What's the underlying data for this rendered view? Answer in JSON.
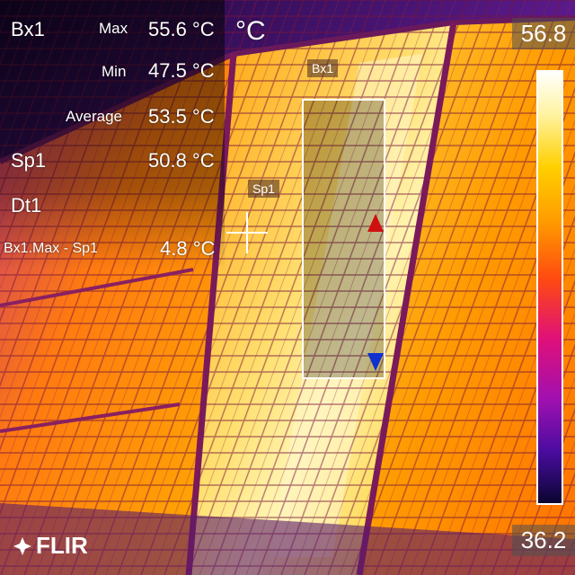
{
  "measurements": {
    "box_name": "Bx1",
    "unit": "°C",
    "max_label": "Max",
    "max_value": "55.6 °C",
    "min_label": "Min",
    "min_value": "47.5 °C",
    "avg_label": "Average",
    "avg_value": "53.5 °C",
    "spot_name": "Sp1",
    "spot_value": "50.8 °C",
    "delta_name": "Dt1",
    "delta_label": "Bx1.Max - Sp1",
    "delta_value": "4.8 °C"
  },
  "overlay": {
    "box_tag": "Bx1",
    "spot_tag": "Sp1"
  },
  "scale": {
    "max": "56.8",
    "min": "36.2"
  },
  "brand": {
    "logo_text": "FLIR"
  },
  "icons": {
    "max_marker": "red-triangle-up-icon",
    "min_marker": "blue-triangle-down-icon",
    "spot": "crosshair-icon"
  },
  "colors": {
    "max_marker": "#d01010",
    "min_marker": "#1030d0"
  }
}
